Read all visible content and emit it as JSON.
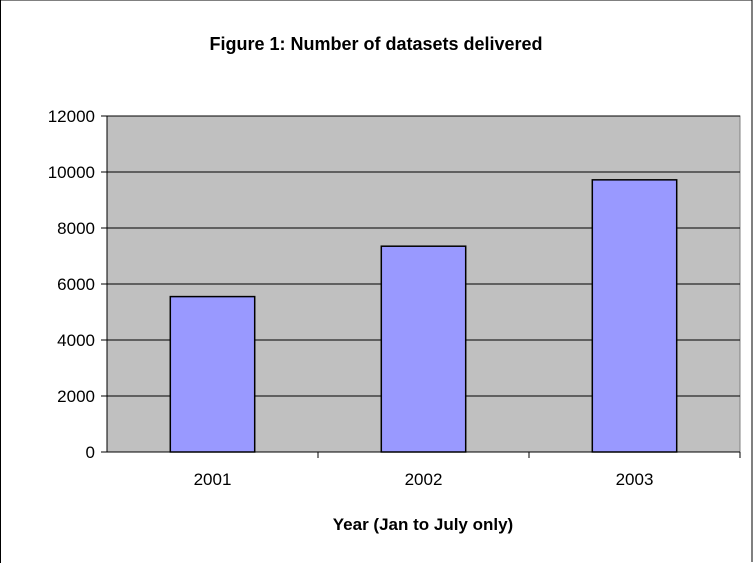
{
  "chart_data": {
    "type": "bar",
    "title": "Figure 1: Number of datasets delivered",
    "xlabel": "Year (Jan to July only)",
    "ylabel": "",
    "categories": [
      "2001",
      "2002",
      "2003"
    ],
    "values": [
      5550,
      7350,
      9720
    ],
    "ylim": [
      0,
      12000
    ],
    "yticks": [
      "0",
      "2000",
      "4000",
      "6000",
      "8000",
      "10000",
      "12000"
    ],
    "grid": true,
    "legend": "none",
    "colors": {
      "plot_background": "#c0c0c0",
      "bar_fill": "#9999ff",
      "bar_stroke": "#000000",
      "gridline": "#000000"
    }
  }
}
